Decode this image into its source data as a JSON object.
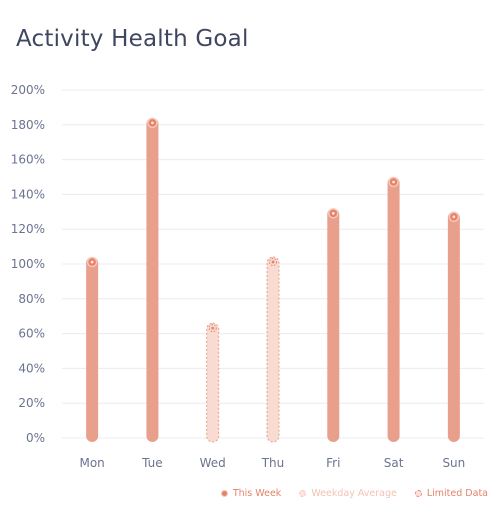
{
  "title": "Activity Health Goal",
  "colors": {
    "this_week": "#e8a08c",
    "this_week_marker": "#e5836a",
    "limited_fill": "#f8dbd1",
    "limited_stroke": "#e8a08c",
    "grid": "#ececf0",
    "text": "#6b7390"
  },
  "legend": [
    {
      "label": "This Week",
      "style": "solid",
      "color": "#e5836a"
    },
    {
      "label": "Weekday Average",
      "style": "faded",
      "color": "#f5c9bb"
    },
    {
      "label": "Limited Data",
      "style": "dashed",
      "color": "#e5836a"
    }
  ],
  "chart_data": {
    "type": "bar",
    "categories": [
      "Mon",
      "Tue",
      "Wed",
      "Thu",
      "Fri",
      "Sat",
      "Sun"
    ],
    "values": [
      104,
      184,
      66,
      104,
      132,
      150,
      130
    ],
    "limited_data": [
      false,
      false,
      true,
      true,
      false,
      false,
      false
    ],
    "y_ticks": [
      "0%",
      "20%",
      "40%",
      "60%",
      "80%",
      "100%",
      "120%",
      "140%",
      "160%",
      "180%",
      "200%"
    ],
    "ylim": [
      0,
      200
    ],
    "grid": true,
    "legend_position": "bottom-right"
  }
}
